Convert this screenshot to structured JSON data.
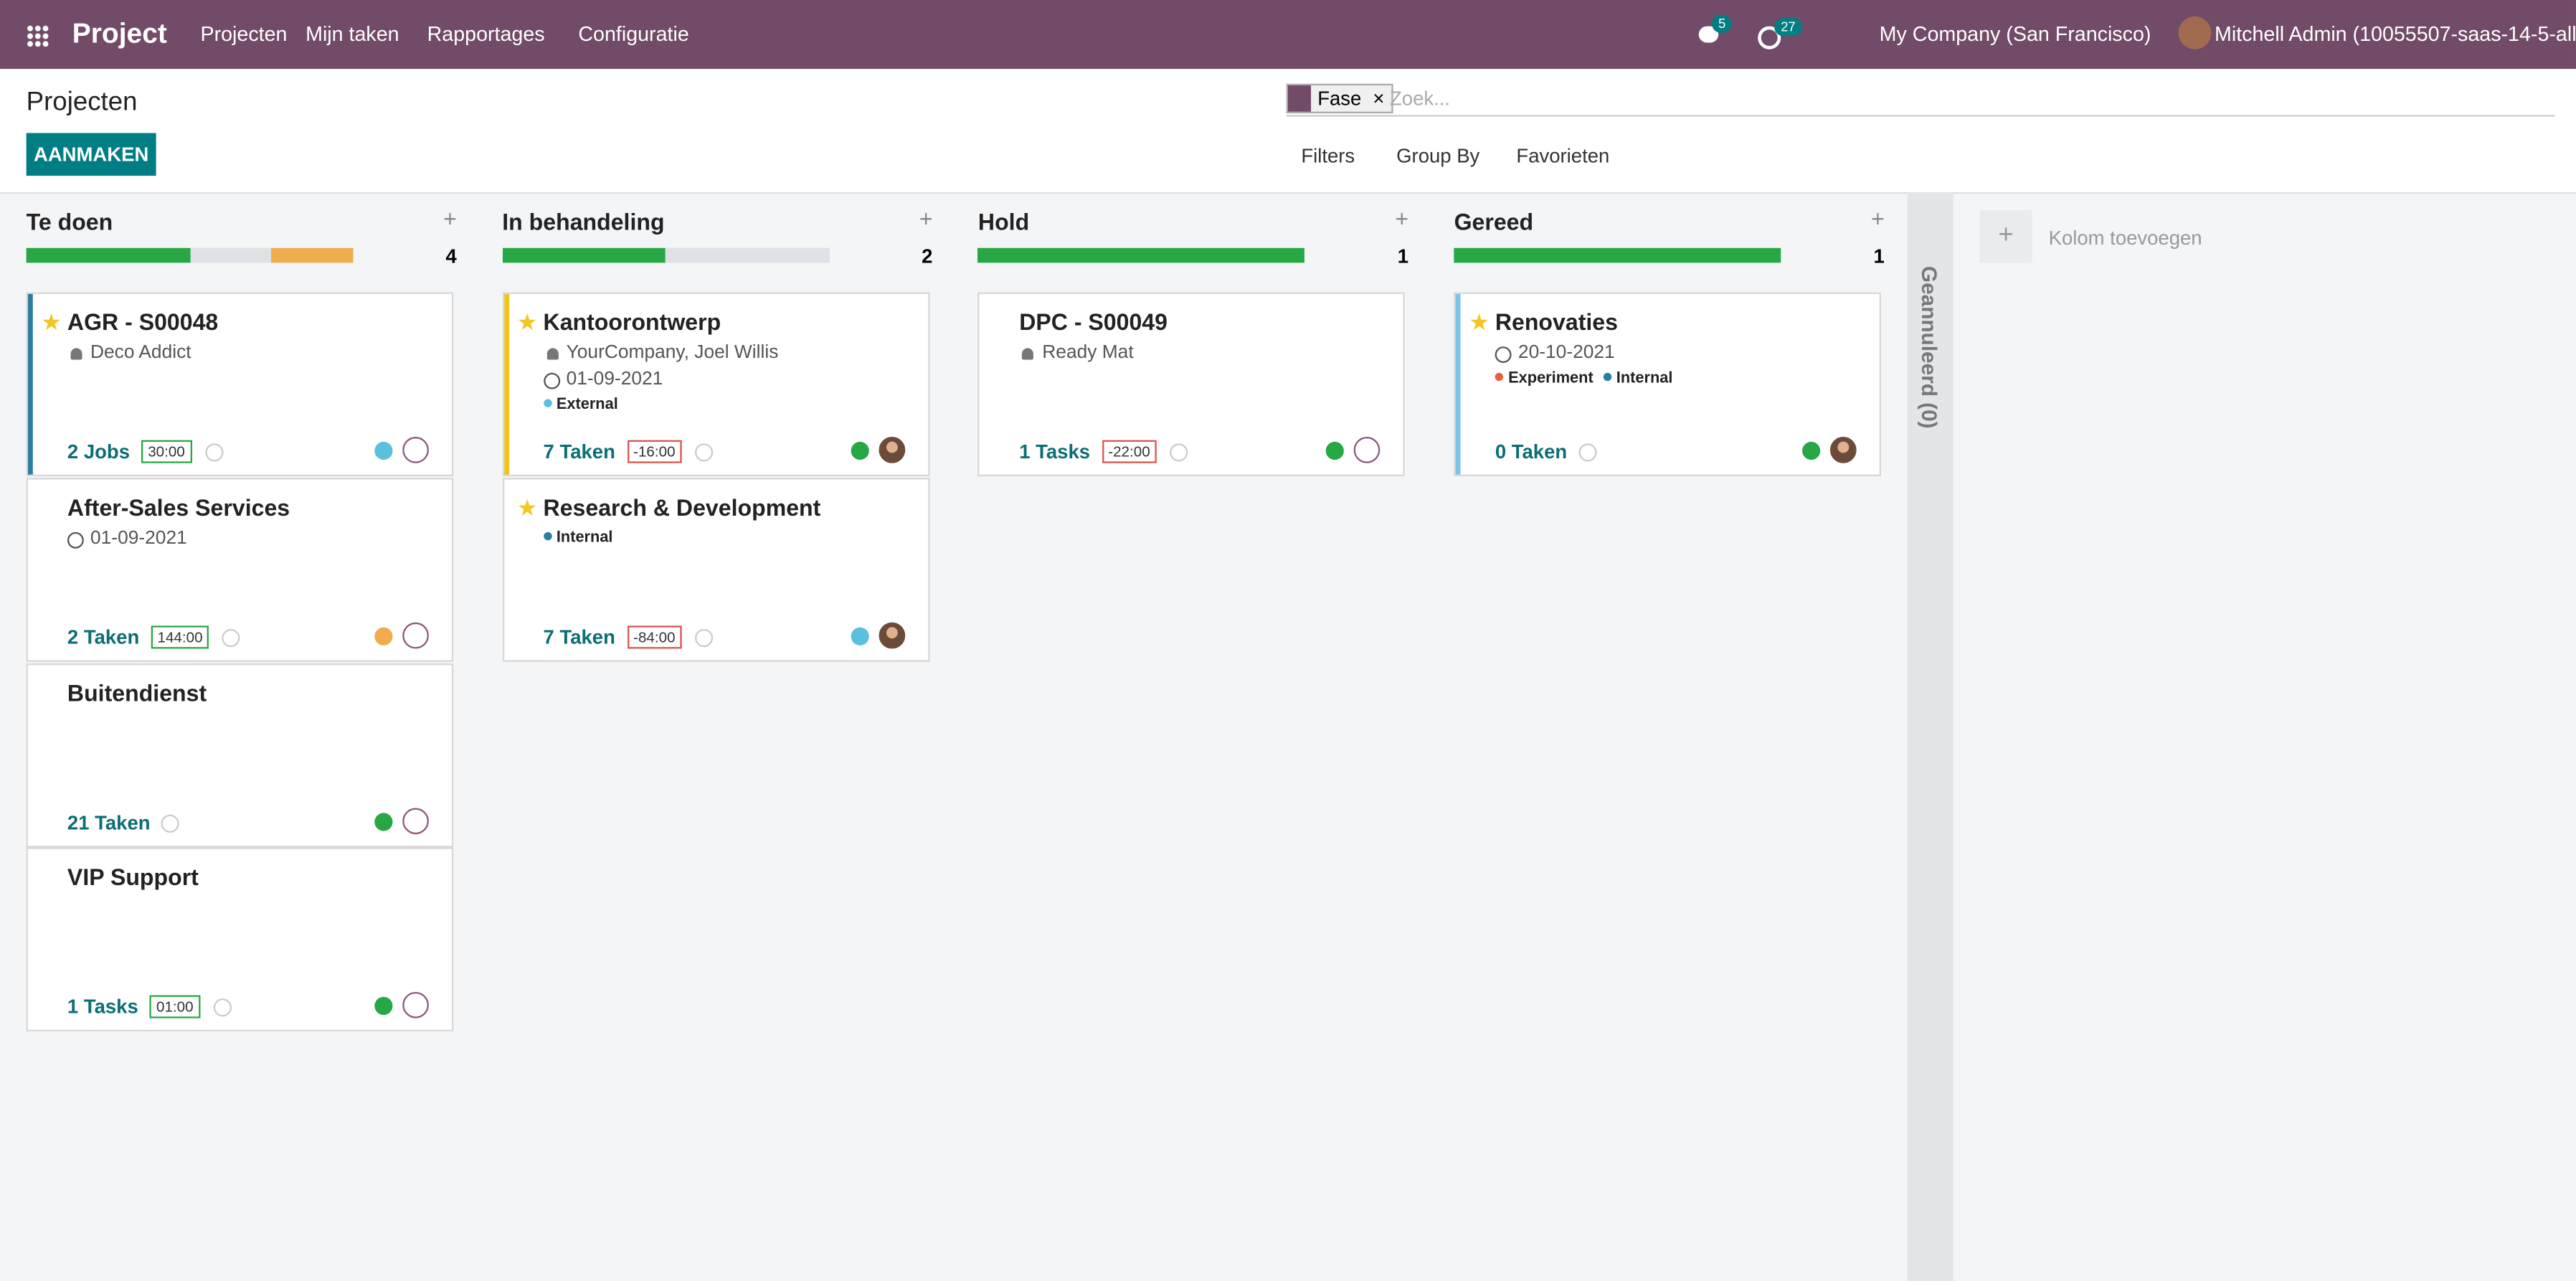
{
  "navbar": {
    "app": "Project",
    "menu": [
      "Projecten",
      "Mijn taken",
      "Rapportages",
      "Configuratie"
    ],
    "messages_count": 5,
    "activities_count": 27,
    "company": "My Company (San Francisco)",
    "user": "Mitchell Admin (10055507-saas-14-5-all)"
  },
  "control_panel": {
    "breadcrumb": "Projecten",
    "create_button": "AANMAKEN",
    "facet": "Fase",
    "search_placeholder": "Zoek...",
    "filters": "Filters",
    "group_by": "Group By",
    "favorites": "Favorieten"
  },
  "columns": [
    {
      "title": "Te doen",
      "count": 4,
      "progress": [
        {
          "color": "#28a745",
          "value": 2
        },
        {
          "color": "#dee2e6",
          "value": 1
        },
        {
          "color": "#f0ad4e",
          "value": 1
        }
      ],
      "cards": [
        {
          "name": "AGR - S00048",
          "starred": true,
          "accent": "#2a7f9e",
          "customer": "Deco Addict",
          "tasks": "2 Jobs",
          "hours": "30:00",
          "hours_color": "#28a745",
          "status_color": "#5bc0de",
          "photo": false
        },
        {
          "name": "After-Sales Services",
          "date": "01-09-2021",
          "tasks": "2 Taken",
          "hours": "144:00",
          "hours_color": "#28a745",
          "status_color": "#f0ad4e",
          "photo": false
        },
        {
          "name": "Buitendienst",
          "tasks": "21 Taken",
          "status_color": "#28a745",
          "photo": false
        },
        {
          "name": "VIP Support",
          "tasks": "1 Tasks",
          "hours": "01:00",
          "hours_color": "#28a745",
          "status_color": "#28a745",
          "photo": false
        }
      ]
    },
    {
      "title": "In behandeling",
      "count": 2,
      "progress": [
        {
          "color": "#28a745",
          "value": 1
        },
        {
          "color": "#dee2e6",
          "value": 1
        }
      ],
      "cards": [
        {
          "name": "Kantoorontwerp",
          "starred": true,
          "accent": "#f0c419",
          "customer": "YourCompany, Joel Willis",
          "date": "01-09-2021",
          "tags": [
            {
              "label": "External",
              "color": "#5bc0de"
            }
          ],
          "tasks": "7 Taken",
          "hours": "-16:00",
          "hours_color": "#d9534f",
          "status_color": "#28a745",
          "photo": true
        },
        {
          "name": "Research & Development",
          "starred": true,
          "tags": [
            {
              "label": "Internal",
              "color": "#2a7f9e"
            }
          ],
          "tasks": "7 Taken",
          "hours": "-84:00",
          "hours_color": "#d9534f",
          "status_color": "#5bc0de",
          "photo": true
        }
      ]
    },
    {
      "title": "Hold",
      "count": 1,
      "progress": [
        {
          "color": "#28a745",
          "value": 1
        }
      ],
      "cards": [
        {
          "name": "DPC - S00049",
          "customer": "Ready Mat",
          "tasks": "1 Tasks",
          "hours": "-22:00",
          "hours_color": "#d9534f",
          "status_color": "#28a745",
          "photo": false
        }
      ]
    },
    {
      "title": "Gereed",
      "count": 1,
      "progress": [
        {
          "color": "#28a745",
          "value": 1
        }
      ],
      "cards": [
        {
          "name": "Renovaties",
          "starred": true,
          "accent": "#7cc4e8",
          "date": "20-10-2021",
          "tags": [
            {
              "label": "Experiment",
              "color": "#e8603c"
            },
            {
              "label": "Internal",
              "color": "#2a7f9e"
            }
          ],
          "tasks": "0 Taken",
          "status_color": "#28a745",
          "photo": true
        }
      ]
    }
  ],
  "folded_column": "Geannuleerd (0)",
  "add_column": "Kolom toevoegen"
}
